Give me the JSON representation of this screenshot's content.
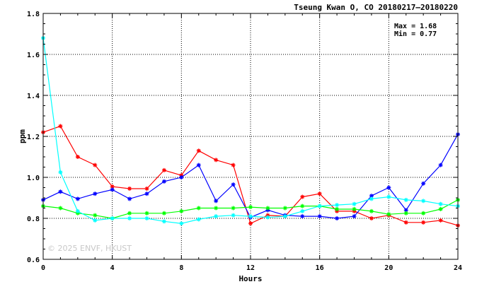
{
  "chart_data": {
    "type": "line",
    "title": "Tseung Kwan O, CO 20180217–20180220",
    "xlabel": "Hours",
    "ylabel": "ppm",
    "xlim": [
      0,
      24
    ],
    "ylim": [
      0.6,
      1.8
    ],
    "xticks": [
      "0",
      "4",
      "8",
      "12",
      "16",
      "20",
      "24"
    ],
    "yticks": [
      "0.6",
      "0.8",
      "1.0",
      "1.2",
      "1.4",
      "1.6",
      "1.8"
    ],
    "x": [
      0,
      1,
      2,
      3,
      4,
      5,
      6,
      7,
      8,
      9,
      10,
      11,
      12,
      13,
      14,
      15,
      16,
      17,
      18,
      19,
      20,
      21,
      22,
      23,
      24
    ],
    "grid": true,
    "stats": {
      "max": "Max = 1.68",
      "min": "Min = 0.77"
    },
    "watermark": "© 2025  ENVF, HKUST",
    "series": [
      {
        "color": "#ff0000",
        "values": [
          1.22,
          1.25,
          1.1,
          1.06,
          0.955,
          0.945,
          0.945,
          1.035,
          1.01,
          1.13,
          1.085,
          1.06,
          0.775,
          0.815,
          0.81,
          0.905,
          0.92,
          0.835,
          0.835,
          0.8,
          0.815,
          0.78,
          0.78,
          0.79,
          0.765
        ]
      },
      {
        "color": "#0000ff",
        "values": [
          0.89,
          0.93,
          0.895,
          0.92,
          0.94,
          0.895,
          0.92,
          0.98,
          1.0,
          1.06,
          0.885,
          0.965,
          0.805,
          0.84,
          0.815,
          0.81,
          0.81,
          0.8,
          0.81,
          0.91,
          0.95,
          0.84,
          0.97,
          1.06,
          1.21
        ]
      },
      {
        "color": "#00ff00",
        "values": [
          0.86,
          0.85,
          0.825,
          0.815,
          0.8,
          0.825,
          0.825,
          0.825,
          0.835,
          0.85,
          0.85,
          0.85,
          0.855,
          0.85,
          0.85,
          0.86,
          0.86,
          0.845,
          0.845,
          0.835,
          0.82,
          0.825,
          0.825,
          0.845,
          0.89
        ]
      },
      {
        "color": "#00ffff",
        "values": [
          1.68,
          1.025,
          0.835,
          0.79,
          0.8,
          0.8,
          0.8,
          0.785,
          0.775,
          0.795,
          0.81,
          0.815,
          0.81,
          0.805,
          0.81,
          0.835,
          0.86,
          0.865,
          0.87,
          0.895,
          0.905,
          0.89,
          0.885,
          0.87,
          0.86
        ]
      }
    ]
  }
}
